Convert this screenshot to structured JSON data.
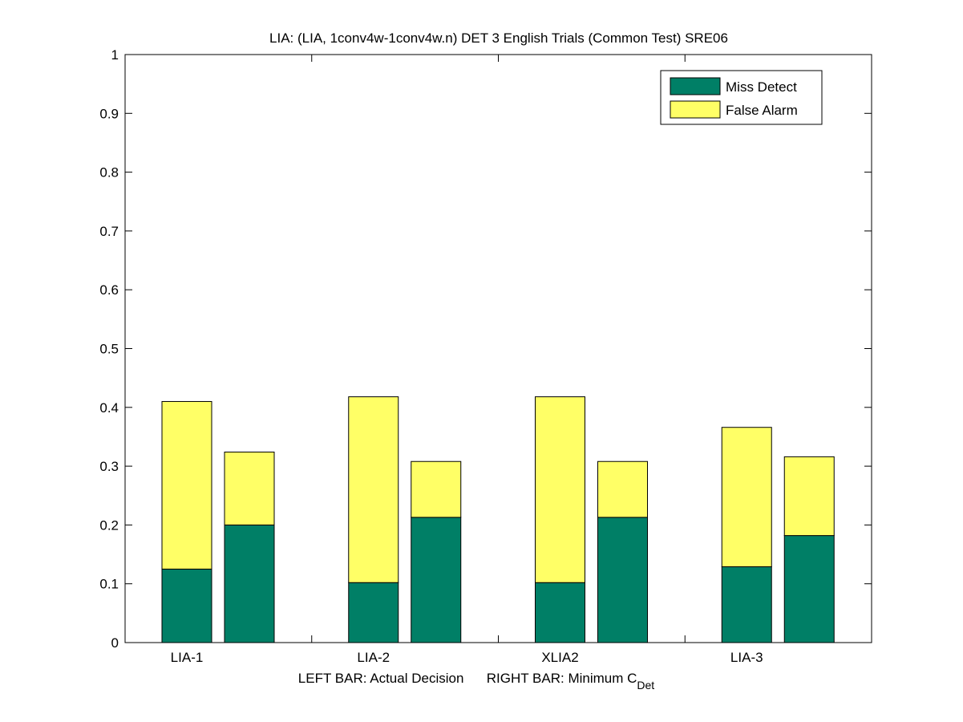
{
  "chart_data": {
    "type": "bar",
    "stacked": true,
    "title": "LIA: (LIA, 1conv4w-1conv4w.n) DET 3 English Trials (Common Test) SRE06",
    "xlabel": {
      "left": "LEFT BAR: Actual Decision",
      "right_prefix": "RIGHT BAR: Minimum C",
      "right_subscript": "Det"
    },
    "categories": [
      "LIA-1",
      "LIA-2",
      "XLIA2",
      "LIA-3"
    ],
    "ylim": [
      0,
      1
    ],
    "yticks": [
      "0",
      "0.1",
      "0.2",
      "0.3",
      "0.4",
      "0.5",
      "0.6",
      "0.7",
      "0.8",
      "0.9",
      "1"
    ],
    "ytick_values": [
      0,
      0.1,
      0.2,
      0.3,
      0.4,
      0.5,
      0.6,
      0.7,
      0.8,
      0.9,
      1
    ],
    "legend": {
      "position": "top-right",
      "entries": [
        "Miss Detect",
        "False Alarm"
      ]
    },
    "colors": {
      "miss_detect": "#007f66",
      "false_alarm": "#ffff66"
    },
    "series": [
      {
        "name": "Miss Detect",
        "actual_decision": [
          0.125,
          0.102,
          0.102,
          0.129
        ],
        "minimum_cdet": [
          0.2,
          0.213,
          0.213,
          0.182
        ]
      },
      {
        "name": "False Alarm",
        "actual_decision": [
          0.285,
          0.316,
          0.316,
          0.237
        ],
        "minimum_cdet": [
          0.124,
          0.095,
          0.095,
          0.134
        ]
      }
    ],
    "grid": false
  }
}
